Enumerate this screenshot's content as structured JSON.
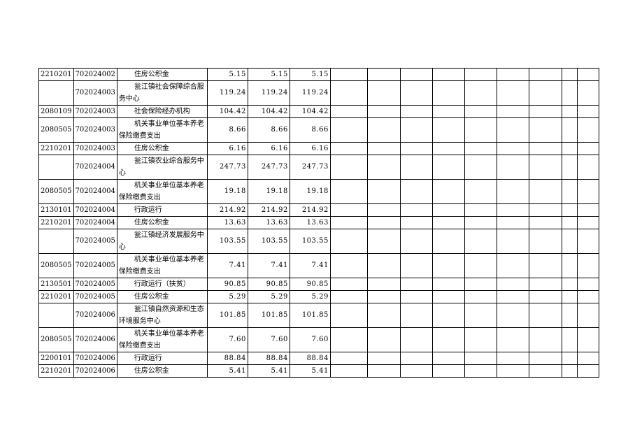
{
  "table": {
    "rows": [
      [
        "2210201",
        "702024002",
        "住房公积金",
        "5.15",
        "5.15",
        "5.15"
      ],
      [
        null,
        "702024003",
        "瓮江镇社会保障综合服务中心",
        "119.24",
        "119.24",
        "119.24"
      ],
      [
        "2080109",
        "702024003",
        "社会保险经办机构",
        "104.42",
        "104.42",
        "104.42"
      ],
      [
        "2080505",
        "702024003",
        "机关事业单位基本养老保险缴费支出",
        "8.66",
        "8.66",
        "8.66"
      ],
      [
        "2210201",
        "702024003",
        "住房公积金",
        "6.16",
        "6.16",
        "6.16"
      ],
      [
        null,
        "702024004",
        "瓮江镇农业综合服务中心",
        "247.73",
        "247.73",
        "247.73"
      ],
      [
        "2080505",
        "702024004",
        "机关事业单位基本养老保险缴费支出",
        "19.18",
        "19.18",
        "19.18"
      ],
      [
        "2130101",
        "702024004",
        "行政运行",
        "214.92",
        "214.92",
        "214.92"
      ],
      [
        "2210201",
        "702024004",
        "住房公积金",
        "13.63",
        "13.63",
        "13.63"
      ],
      [
        null,
        "702024005",
        "瓮江镇经济发展服务中心",
        "103.55",
        "103.55",
        "103.55"
      ],
      [
        "2080505",
        "702024005",
        "机关事业单位基本养老保险缴费支出",
        "7.41",
        "7.41",
        "7.41"
      ],
      [
        "2130501",
        "702024005",
        "行政运行（扶贫）",
        "90.85",
        "90.85",
        "90.85"
      ],
      [
        "2210201",
        "702024005",
        "住房公积金",
        "5.29",
        "5.29",
        "5.29"
      ],
      [
        null,
        "702024006",
        "瓮江镇自然资源和生态环境服务中心",
        "101.85",
        "101.85",
        "101.85"
      ],
      [
        "2080505",
        "702024006",
        "机关事业单位基本养老保险缴费支出",
        "7.60",
        "7.60",
        "7.60"
      ],
      [
        "2200101",
        "702024006",
        "行政运行",
        "88.84",
        "88.84",
        "88.84"
      ],
      [
        "2210201",
        "702024006",
        "住房公积金",
        "5.41",
        "5.41",
        "5.41"
      ]
    ]
  }
}
